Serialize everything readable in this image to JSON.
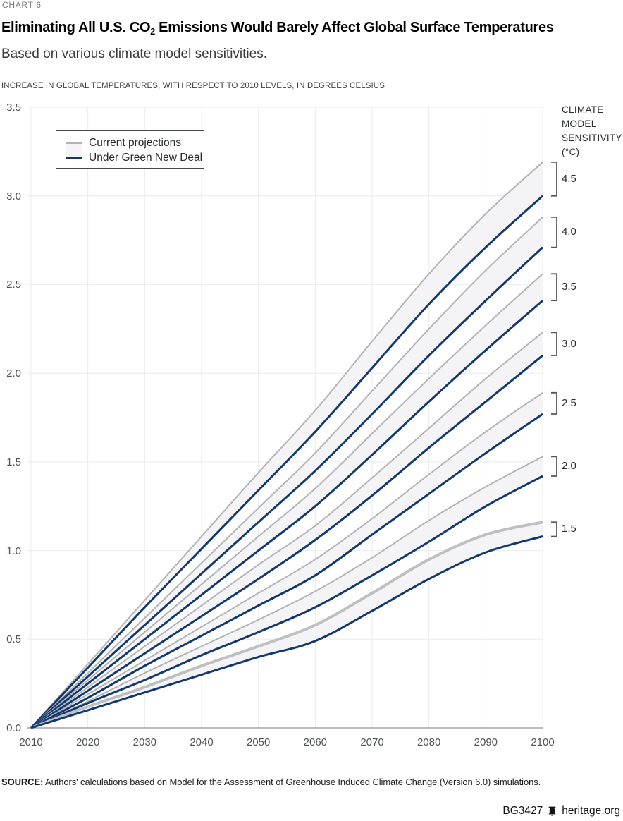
{
  "page": {
    "chart_label": "CHART 6",
    "title_pre": "Eliminating All U.S. CO",
    "title_sub": "2",
    "title_post": " Emissions Would Barely Affect Global Surface Temperatures",
    "subtitle": "Based on various climate model sensitivities.",
    "axis_note": "INCREASE IN GLOBAL TEMPERATURES, WITH RESPECT TO 2010 LEVELS, IN DEGREES CELSIUS"
  },
  "legend": {
    "items": [
      {
        "label": "Current projections"
      },
      {
        "label": "Under Green New Deal"
      }
    ]
  },
  "right_panel": {
    "header_lines": [
      "CLIMATE",
      "MODEL",
      "SENSITIVITY",
      "(°C)"
    ]
  },
  "source": {
    "label": "SOURCE:",
    "text": " Authors' calculations based on Model for the Assessment of Greenhouse Induced Climate Change (Version 6.0) simulations."
  },
  "footer": {
    "doc_id": "BG3427",
    "site": "heritage.org",
    "icon": "liberty-bell-icon"
  },
  "colors": {
    "current_line": "#b1b3b6",
    "current_line_bold": "#bdbfc1",
    "gnd_line": "#12386e",
    "band_fill": "#f4f4f6",
    "grid": "#ebebeb",
    "axis": "#909294",
    "bracket": "#55585a",
    "tick_text": "#505356"
  },
  "chart_data": {
    "type": "line",
    "title": "Eliminating All U.S. CO2 Emissions Would Barely Affect Global Surface Temperatures",
    "subtitle": "Based on various climate model sensitivities.",
    "xlabel": "",
    "ylabel": "INCREASE IN GLOBAL TEMPERATURES, WITH RESPECT TO 2010 LEVELS, IN DEGREES CELSIUS",
    "grid": true,
    "legend_position": "top-left",
    "series_legend": [
      "Current projections",
      "Under Green New Deal"
    ],
    "x": [
      2010,
      2020,
      2030,
      2040,
      2050,
      2060,
      2070,
      2080,
      2090,
      2100
    ],
    "xlim": [
      2010,
      2100
    ],
    "ylim": [
      0,
      3.5
    ],
    "xticks": [
      "2010",
      "2020",
      "2030",
      "2040",
      "2050",
      "2060",
      "2070",
      "2080",
      "2090",
      "2100"
    ],
    "yticks": [
      "0.0",
      "0.5",
      "1.0",
      "1.5",
      "2.0",
      "2.5",
      "3.0",
      "3.5"
    ],
    "right_axis_title": "CLIMATE MODEL SENSITIVITY (°C)",
    "pairs": [
      {
        "sensitivity": "4.5",
        "current": [
          0,
          0.36,
          0.72,
          1.08,
          1.44,
          1.79,
          2.18,
          2.56,
          2.9,
          3.19
        ],
        "green_new_deal": [
          0,
          0.34,
          0.68,
          1.01,
          1.34,
          1.67,
          2.03,
          2.39,
          2.71,
          3.0
        ]
      },
      {
        "sensitivity": "4.0",
        "current": [
          0,
          0.31,
          0.62,
          0.93,
          1.24,
          1.55,
          1.9,
          2.25,
          2.58,
          2.88
        ],
        "green_new_deal": [
          0,
          0.29,
          0.58,
          0.87,
          1.16,
          1.45,
          1.77,
          2.1,
          2.41,
          2.71
        ]
      },
      {
        "sensitivity": "3.5",
        "current": [
          0,
          0.27,
          0.54,
          0.81,
          1.08,
          1.35,
          1.66,
          1.97,
          2.27,
          2.56
        ],
        "green_new_deal": [
          0,
          0.25,
          0.5,
          0.75,
          1.0,
          1.25,
          1.54,
          1.84,
          2.13,
          2.41
        ]
      },
      {
        "sensitivity": "3.0",
        "current": [
          0,
          0.23,
          0.46,
          0.69,
          0.92,
          1.14,
          1.41,
          1.69,
          1.97,
          2.23
        ],
        "green_new_deal": [
          0,
          0.21,
          0.42,
          0.63,
          0.84,
          1.06,
          1.31,
          1.58,
          1.84,
          2.1
        ]
      },
      {
        "sensitivity": "2.5",
        "current": [
          0,
          0.19,
          0.38,
          0.57,
          0.76,
          0.95,
          1.18,
          1.43,
          1.67,
          1.89
        ],
        "green_new_deal": [
          0,
          0.17,
          0.35,
          0.52,
          0.69,
          0.86,
          1.09,
          1.32,
          1.55,
          1.77
        ]
      },
      {
        "sensitivity": "2.0",
        "current": [
          0,
          0.15,
          0.31,
          0.46,
          0.61,
          0.77,
          0.96,
          1.17,
          1.36,
          1.53
        ],
        "green_new_deal": [
          0,
          0.14,
          0.27,
          0.41,
          0.54,
          0.68,
          0.86,
          1.05,
          1.25,
          1.42
        ]
      },
      {
        "sensitivity": "1.5",
        "current": [
          0,
          0.12,
          0.23,
          0.35,
          0.46,
          0.58,
          0.76,
          0.95,
          1.09,
          1.16
        ],
        "green_new_deal": [
          0,
          0.1,
          0.2,
          0.3,
          0.4,
          0.49,
          0.66,
          0.84,
          0.99,
          1.08
        ]
      }
    ]
  }
}
